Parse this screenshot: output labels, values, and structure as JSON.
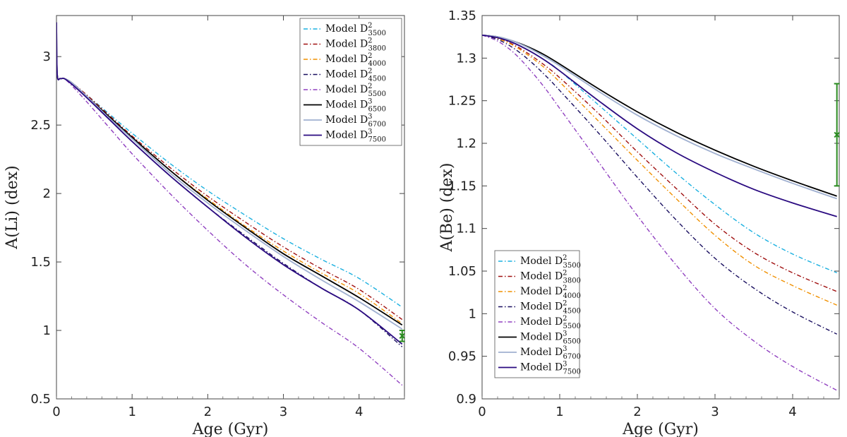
{
  "chart_data": [
    {
      "type": "line",
      "xlabel": "Age (Gyr)",
      "ylabel": "A(Li) (dex)",
      "xlim": [
        0,
        4.6
      ],
      "ylim": [
        0.5,
        3.3
      ],
      "xticks": [
        0,
        1,
        2,
        3,
        4
      ],
      "xtick_labels": [
        "0",
        "1",
        "2",
        "3",
        "4"
      ],
      "yticks": [
        0.5,
        1,
        1.5,
        2,
        2.5,
        3
      ],
      "ytick_labels": [
        "0.5",
        "1",
        "1.5",
        "2",
        "2.5",
        "3"
      ],
      "legend_position": "top-right",
      "x": [
        0,
        0.01,
        0.05,
        0.1,
        0.2,
        0.4,
        0.7,
        1.0,
        1.5,
        2.0,
        2.5,
        3.0,
        3.5,
        4.0,
        4.57
      ],
      "series": [
        {
          "name": "Model D",
          "sup": "2",
          "sub": "3500",
          "color": "#1ab0e0",
          "dash": "6,3,1.5,3",
          "values": [
            3.25,
            2.87,
            2.84,
            2.84,
            2.81,
            2.72,
            2.58,
            2.44,
            2.22,
            2.02,
            1.84,
            1.67,
            1.52,
            1.38,
            1.17
          ]
        },
        {
          "name": "Model D",
          "sup": "2",
          "sub": "3800",
          "color": "#a01010",
          "dash": "6,3,1.5,3",
          "values": [
            3.25,
            2.87,
            2.84,
            2.84,
            2.81,
            2.72,
            2.57,
            2.42,
            2.19,
            1.98,
            1.79,
            1.61,
            1.45,
            1.3,
            1.08
          ]
        },
        {
          "name": "Model D",
          "sup": "2",
          "sub": "4000",
          "color": "#f09000",
          "dash": "6,3,1.5,3",
          "values": [
            3.25,
            2.87,
            2.84,
            2.84,
            2.81,
            2.71,
            2.56,
            2.41,
            2.17,
            1.96,
            1.76,
            1.58,
            1.42,
            1.27,
            1.05
          ]
        },
        {
          "name": "Model D",
          "sup": "2",
          "sub": "4500",
          "color": "#1a1060",
          "dash": "6,3,1.5,3",
          "values": [
            3.25,
            2.87,
            2.84,
            2.84,
            2.8,
            2.7,
            2.54,
            2.38,
            2.13,
            1.9,
            1.69,
            1.49,
            1.31,
            1.15,
            0.88
          ]
        },
        {
          "name": "Model D",
          "sup": "2",
          "sub": "5500",
          "color": "#9040c0",
          "dash": "6,3,1.5,3",
          "values": [
            3.25,
            2.87,
            2.84,
            2.84,
            2.79,
            2.67,
            2.48,
            2.29,
            2.0,
            1.73,
            1.48,
            1.26,
            1.06,
            0.87,
            0.6
          ]
        },
        {
          "name": "Model D",
          "sup": "3",
          "sub": "6500",
          "color": "#000000",
          "dash": "",
          "values": [
            3.25,
            2.87,
            2.84,
            2.84,
            2.81,
            2.71,
            2.56,
            2.41,
            2.17,
            1.95,
            1.75,
            1.56,
            1.4,
            1.24,
            1.04
          ]
        },
        {
          "name": "Model D",
          "sup": "3",
          "sub": "6700",
          "color": "#a0b0d0",
          "dash": "",
          "values": [
            3.25,
            2.87,
            2.84,
            2.84,
            2.81,
            2.71,
            2.55,
            2.4,
            2.15,
            1.93,
            1.73,
            1.54,
            1.37,
            1.21,
            1.01
          ]
        },
        {
          "name": "Model D",
          "sup": "3",
          "sub": "7500",
          "color": "#2a0a80",
          "dash": "",
          "values": [
            3.25,
            2.87,
            2.84,
            2.84,
            2.8,
            2.7,
            2.54,
            2.38,
            2.13,
            1.9,
            1.68,
            1.48,
            1.31,
            1.15,
            0.9
          ]
        }
      ],
      "observation": {
        "x": 4.57,
        "y": 0.96,
        "err": 0.04,
        "color": "#2a8a20"
      }
    },
    {
      "type": "line",
      "xlabel": "Age (Gyr)",
      "ylabel": "A(Be) (dex)",
      "xlim": [
        0,
        4.6
      ],
      "ylim": [
        0.9,
        1.35
      ],
      "xticks": [
        0,
        1,
        2,
        3,
        4
      ],
      "xtick_labels": [
        "0",
        "1",
        "2",
        "3",
        "4"
      ],
      "yticks": [
        0.9,
        0.95,
        1.0,
        1.05,
        1.1,
        1.15,
        1.2,
        1.25,
        1.3,
        1.35
      ],
      "ytick_labels": [
        "0.9",
        "0.95",
        "1",
        "1.05",
        "1.1",
        "1.15",
        "1.2",
        "1.25",
        "1.3",
        "1.35"
      ],
      "legend_position": "bottom-left",
      "x": [
        0,
        0.2,
        0.4,
        0.6,
        0.8,
        1.0,
        1.5,
        2.0,
        2.5,
        3.0,
        3.5,
        4.0,
        4.57
      ],
      "series": [
        {
          "name": "Model D",
          "sup": "2",
          "sub": "3500",
          "color": "#1ab0e0",
          "dash": "6,3,1.5,3",
          "values": [
            1.327,
            1.324,
            1.318,
            1.309,
            1.298,
            1.285,
            1.245,
            1.205,
            1.165,
            1.128,
            1.095,
            1.07,
            1.048
          ]
        },
        {
          "name": "Model D",
          "sup": "2",
          "sub": "3800",
          "color": "#a01010",
          "dash": "6,3,1.5,3",
          "values": [
            1.327,
            1.323,
            1.316,
            1.305,
            1.292,
            1.277,
            1.235,
            1.19,
            1.147,
            1.105,
            1.072,
            1.048,
            1.026
          ]
        },
        {
          "name": "Model D",
          "sup": "2",
          "sub": "4000",
          "color": "#f09000",
          "dash": "6,3,1.5,3",
          "values": [
            1.327,
            1.323,
            1.315,
            1.303,
            1.289,
            1.272,
            1.226,
            1.18,
            1.135,
            1.092,
            1.057,
            1.033,
            1.01
          ]
        },
        {
          "name": "Model D",
          "sup": "2",
          "sub": "4500",
          "color": "#1a1060",
          "dash": "6,3,1.5,3",
          "values": [
            1.327,
            1.322,
            1.312,
            1.298,
            1.281,
            1.262,
            1.212,
            1.16,
            1.11,
            1.065,
            1.03,
            1.002,
            0.976
          ]
        },
        {
          "name": "Model D",
          "sup": "2",
          "sub": "5500",
          "color": "#9040c0",
          "dash": "6,3,1.5,3",
          "values": [
            1.327,
            1.32,
            1.307,
            1.288,
            1.266,
            1.241,
            1.178,
            1.115,
            1.057,
            1.006,
            0.968,
            0.938,
            0.91
          ]
        },
        {
          "name": "Model D",
          "sup": "3",
          "sub": "6500",
          "color": "#000000",
          "dash": "",
          "values": [
            1.327,
            1.325,
            1.32,
            1.313,
            1.304,
            1.293,
            1.264,
            1.237,
            1.213,
            1.192,
            1.173,
            1.156,
            1.138
          ]
        },
        {
          "name": "Model D",
          "sup": "3",
          "sub": "6700",
          "color": "#a0b0d0",
          "dash": "",
          "values": [
            1.327,
            1.325,
            1.32,
            1.312,
            1.302,
            1.291,
            1.261,
            1.233,
            1.209,
            1.188,
            1.17,
            1.153,
            1.135
          ]
        },
        {
          "name": "Model D",
          "sup": "3",
          "sub": "7500",
          "color": "#2a0a80",
          "dash": "",
          "values": [
            1.327,
            1.324,
            1.318,
            1.309,
            1.298,
            1.285,
            1.25,
            1.217,
            1.189,
            1.166,
            1.146,
            1.13,
            1.114
          ]
        }
      ],
      "observation": {
        "x": 4.57,
        "y": 1.21,
        "err": 0.06,
        "color": "#2a8a20"
      }
    }
  ]
}
